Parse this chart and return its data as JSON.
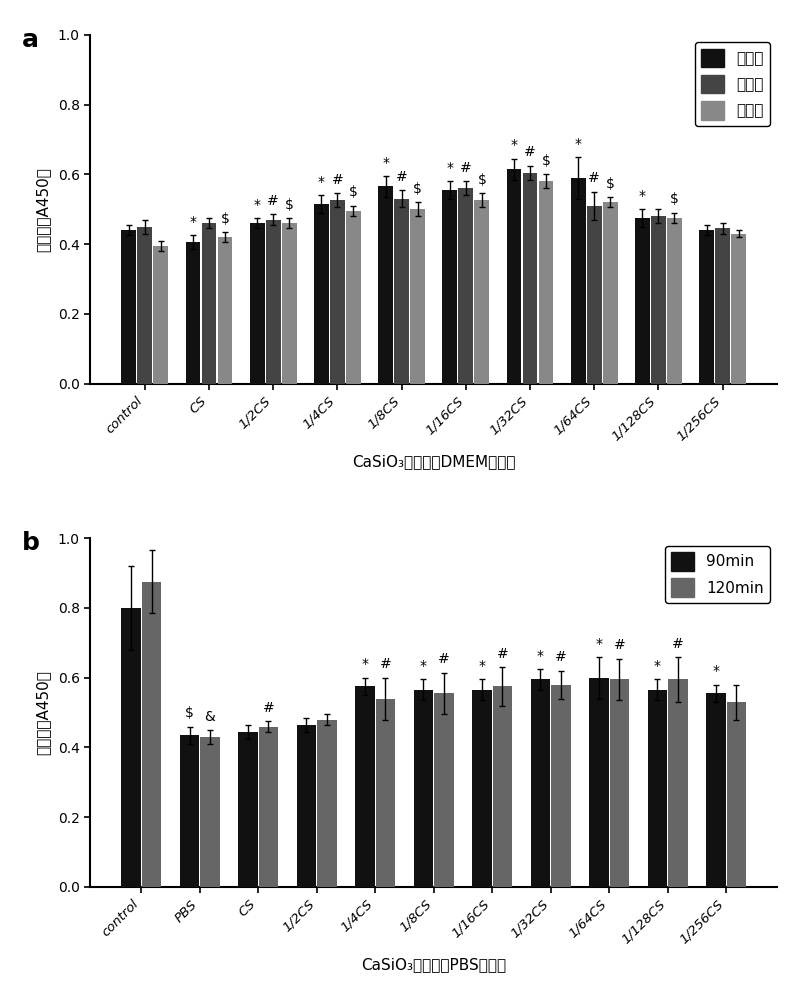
{
  "panel_a": {
    "categories": [
      "control",
      "CS",
      "1/2CS",
      "1/4CS",
      "1/8CS",
      "1/16CS",
      "1/32CS",
      "1/64CS",
      "1/128CS",
      "1/256CS"
    ],
    "day1": [
      0.44,
      0.405,
      0.46,
      0.515,
      0.565,
      0.555,
      0.615,
      0.59,
      0.475,
      0.44
    ],
    "day3": [
      0.45,
      0.46,
      0.47,
      0.525,
      0.53,
      0.56,
      0.605,
      0.51,
      0.48,
      0.445
    ],
    "day5": [
      0.395,
      0.42,
      0.46,
      0.495,
      0.5,
      0.525,
      0.58,
      0.52,
      0.475,
      0.43
    ],
    "day1_err": [
      0.015,
      0.02,
      0.015,
      0.025,
      0.03,
      0.025,
      0.03,
      0.06,
      0.025,
      0.015
    ],
    "day3_err": [
      0.02,
      0.015,
      0.015,
      0.02,
      0.025,
      0.02,
      0.02,
      0.04,
      0.02,
      0.015
    ],
    "day5_err": [
      0.015,
      0.015,
      0.015,
      0.015,
      0.02,
      0.02,
      0.02,
      0.015,
      0.015,
      0.01
    ],
    "annotations_day1": [
      "",
      "*",
      "*",
      "*",
      "*",
      "*",
      "*",
      "*",
      "*",
      ""
    ],
    "annotations_day3": [
      "",
      "",
      "#",
      "#",
      "#",
      "#",
      "#",
      "#",
      "",
      ""
    ],
    "annotations_day5": [
      "",
      "$",
      "$",
      "$",
      "$",
      "$",
      "$",
      "$",
      "$",
      ""
    ],
    "colors": [
      "#111111",
      "#444444",
      "#888888"
    ],
    "ylabel": "吸光度（A450）",
    "xlabel": "CaSiO₃浸提液（DMEM）浓度",
    "ylim": [
      0.0,
      1.0
    ],
    "yticks": [
      0.0,
      0.2,
      0.4,
      0.6,
      0.8,
      1.0
    ],
    "legend_labels": [
      "第一天",
      "第三天",
      "第五天"
    ],
    "panel_label": "a",
    "n_series": 3,
    "bar_width": 0.25
  },
  "panel_b": {
    "categories": [
      "control",
      "PBS",
      "CS",
      "1/2CS",
      "1/4CS",
      "1/8CS",
      "1/16CS",
      "1/32CS",
      "1/64CS",
      "1/128CS",
      "1/256CS"
    ],
    "t90": [
      0.8,
      0.435,
      0.445,
      0.465,
      0.575,
      0.565,
      0.565,
      0.595,
      0.6,
      0.565,
      0.555
    ],
    "t120": [
      0.875,
      0.43,
      0.46,
      0.48,
      0.54,
      0.555,
      0.575,
      0.58,
      0.595,
      0.595,
      0.53
    ],
    "t90_err": [
      0.12,
      0.025,
      0.02,
      0.02,
      0.025,
      0.03,
      0.03,
      0.03,
      0.06,
      0.03,
      0.025
    ],
    "t120_err": [
      0.09,
      0.02,
      0.015,
      0.015,
      0.06,
      0.06,
      0.055,
      0.04,
      0.06,
      0.065,
      0.05
    ],
    "annotations_90": [
      "",
      "$",
      "",
      "",
      "*",
      "*",
      "*",
      "*",
      "*",
      "*",
      "*"
    ],
    "annotations_120": [
      "",
      "&",
      "#",
      "",
      "#",
      "#",
      "#",
      "#",
      "#",
      "#",
      ""
    ],
    "colors": [
      "#111111",
      "#666666"
    ],
    "ylabel": "吸光度（A450）",
    "xlabel": "CaSiO₃浸提液（PBS）浓度",
    "ylim": [
      0.0,
      1.0
    ],
    "yticks": [
      0.0,
      0.2,
      0.4,
      0.6,
      0.8,
      1.0
    ],
    "legend_labels": [
      "90min",
      "120min"
    ],
    "panel_label": "b",
    "n_series": 2,
    "bar_width": 0.35
  },
  "fig_width": 8.05,
  "fig_height": 10.0,
  "dpi": 100,
  "background_color": "#ffffff"
}
